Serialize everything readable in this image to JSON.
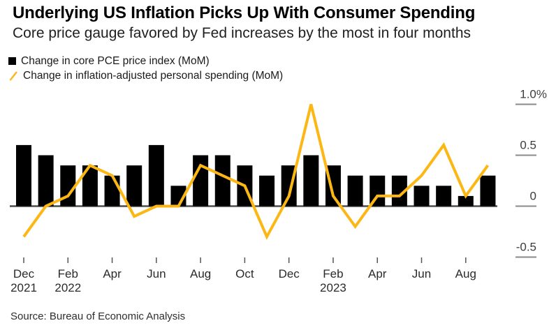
{
  "header": {
    "title": "Underlying US Inflation Picks Up With Consumer Spending",
    "subtitle": "Core price gauge favored by Fed increases by the most in four months"
  },
  "legend": [
    {
      "marker": "black-square",
      "label": "Change in core PCE price index (MoM)",
      "color": "#000000"
    },
    {
      "marker": "yellow-slash",
      "label": "Change in inflation-adjusted personal spending (MoM)",
      "color": "#FCB714"
    }
  ],
  "source": "Source: Bureau of Economic Analysis",
  "colors": {
    "bar": "#000000",
    "line": "#FCB714",
    "axis": "#4d4d4d",
    "tick": "#8a8a8a",
    "axis_text": "#2b2b2b"
  },
  "chart_data": {
    "type": "bar+line",
    "unit": "%",
    "x": [
      "Dec 2021",
      "Jan 2022",
      "Feb 2022",
      "Mar 2022",
      "Apr 2022",
      "May 2022",
      "Jun 2022",
      "Jul 2022",
      "Aug 2022",
      "Sep 2022",
      "Oct 2022",
      "Nov 2022",
      "Dec 2022",
      "Jan 2023",
      "Feb 2023",
      "Mar 2023",
      "Apr 2023",
      "May 2023",
      "Jun 2023",
      "Jul 2023",
      "Aug 2023",
      "Sep 2023"
    ],
    "series": [
      {
        "name": "Change in core PCE price index (MoM)",
        "type": "bar",
        "color": "#000000",
        "values": [
          0.6,
          0.5,
          0.4,
          0.4,
          0.3,
          0.4,
          0.6,
          0.2,
          0.5,
          0.5,
          0.4,
          0.3,
          0.4,
          0.5,
          0.4,
          0.3,
          0.3,
          0.3,
          0.2,
          0.2,
          0.1,
          0.3
        ]
      },
      {
        "name": "Change in inflation-adjusted personal spending (MoM)",
        "type": "line",
        "color": "#FCB714",
        "values": [
          -0.3,
          0.0,
          0.1,
          0.4,
          0.3,
          -0.1,
          0.0,
          0.0,
          0.4,
          0.3,
          0.2,
          -0.3,
          0.1,
          1.0,
          0.1,
          -0.2,
          0.1,
          0.1,
          0.3,
          0.6,
          0.1,
          0.4
        ]
      }
    ],
    "y_ticks": [
      {
        "label": "1.0%",
        "value": 1.0
      },
      {
        "label": "0.5",
        "value": 0.5
      },
      {
        "label": "0",
        "value": 0
      },
      {
        "label": "-0.5",
        "value": -0.5
      }
    ],
    "ylim": [
      -0.65,
      1.15
    ],
    "x_ticks": [
      {
        "index": 0,
        "label": "Dec",
        "year": "2021"
      },
      {
        "index": 2,
        "label": "Feb",
        "year": "2022"
      },
      {
        "index": 4,
        "label": "Apr"
      },
      {
        "index": 6,
        "label": "Jun"
      },
      {
        "index": 8,
        "label": "Aug"
      },
      {
        "index": 10,
        "label": "Oct"
      },
      {
        "index": 12,
        "label": "Dec"
      },
      {
        "index": 14,
        "label": "Feb",
        "year": "2023"
      },
      {
        "index": 16,
        "label": "Apr"
      },
      {
        "index": 18,
        "label": "Jun"
      },
      {
        "index": 20,
        "label": "Aug"
      }
    ],
    "grid": false,
    "legend_position": "top-left",
    "y_axis_side": "right"
  }
}
